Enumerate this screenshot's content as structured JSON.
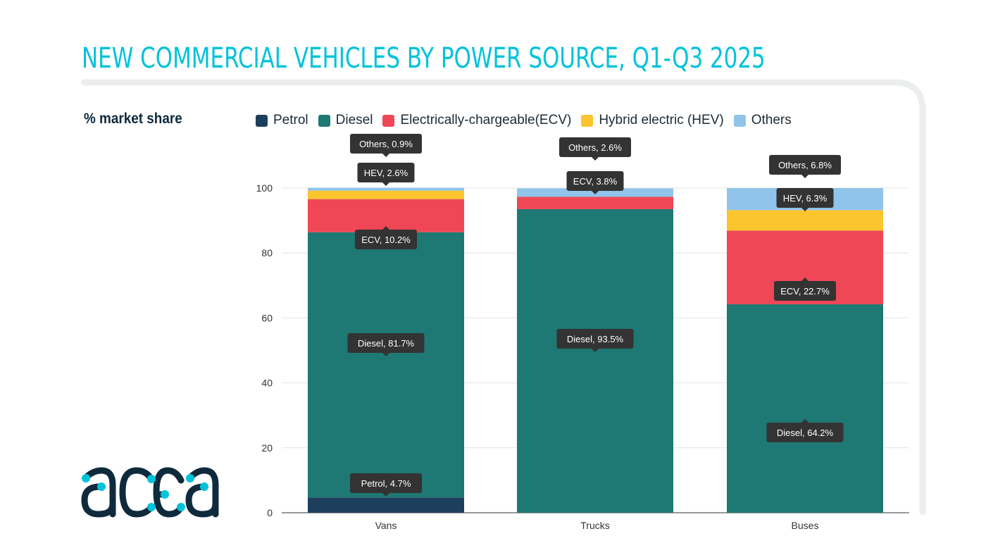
{
  "title": "NEW COMMERCIAL VEHICLES BY POWER SOURCE, Q1-Q3 2025",
  "logo_text": "acea",
  "chart_data": {
    "type": "bar",
    "stacked": true,
    "title": "NEW COMMERCIAL VEHICLES BY POWER SOURCE, Q1-Q3 2025",
    "ylabel": "% market share",
    "xlabel": "",
    "categories": [
      "Vans",
      "Trucks",
      "Buses"
    ],
    "ylim": [
      0,
      100
    ],
    "yticks": [
      0,
      20,
      40,
      60,
      80,
      100
    ],
    "grid": true,
    "legend_placement": "top",
    "series": [
      {
        "name": "Petrol",
        "short": "Petrol",
        "color": "#1c3f5e",
        "values": [
          4.7,
          null,
          null
        ]
      },
      {
        "name": "Diesel",
        "short": "Diesel",
        "color": "#1e7874",
        "values": [
          81.7,
          93.5,
          64.2
        ]
      },
      {
        "name": "Electrically-chargeable(ECV)",
        "short": "ECV",
        "color": "#ef4756",
        "values": [
          10.2,
          3.8,
          22.7
        ]
      },
      {
        "name": "Hybrid electric (HEV)",
        "short": "HEV",
        "color": "#fbc52e",
        "values": [
          2.6,
          null,
          6.3
        ]
      },
      {
        "name": "Others",
        "short": "Others",
        "color": "#90c4ea",
        "values": [
          0.9,
          2.6,
          6.8
        ]
      }
    ]
  },
  "colors": {
    "title": "#00c3da",
    "logo": "#0f2a3d",
    "logo_dots": "#00c3da",
    "tooltip": "#333333"
  }
}
